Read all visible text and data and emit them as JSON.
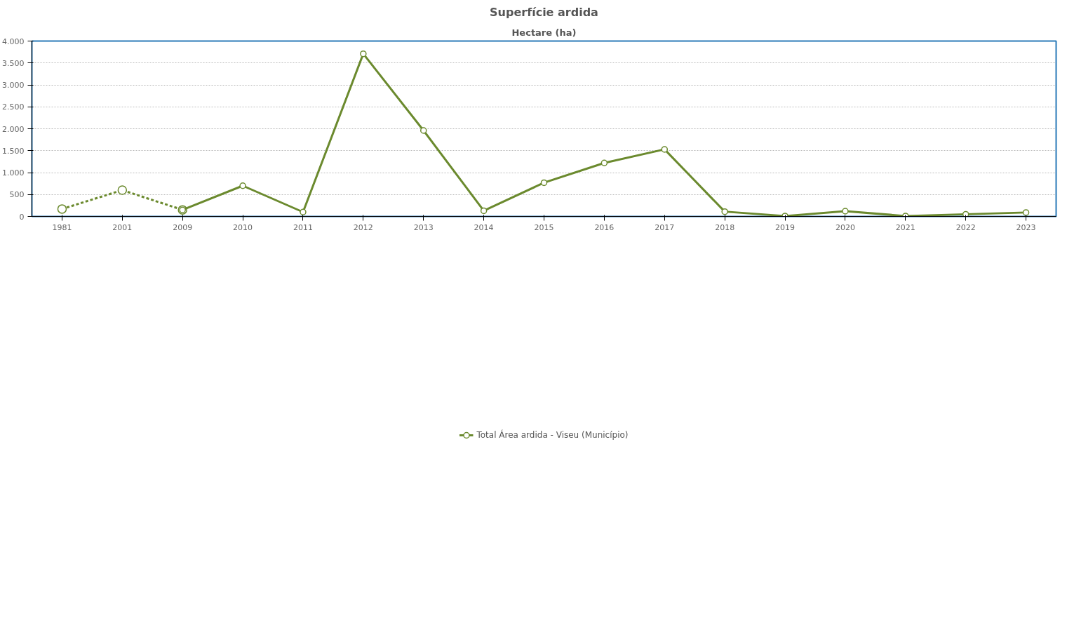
{
  "chart_data": {
    "type": "line",
    "title": "Superfície ardida",
    "subtitle": "Hectare (ha)",
    "categories": [
      "1981",
      "2001",
      "2009",
      "2010",
      "2011",
      "2012",
      "2013",
      "2014",
      "2015",
      "2016",
      "2017",
      "2018",
      "2019",
      "2020",
      "2021",
      "2022",
      "2023"
    ],
    "series": [
      {
        "color": "#6b8a2e",
        "line_style": "dashed",
        "values": [
          170,
          600,
          150,
          null,
          null,
          null,
          null,
          null,
          null,
          null,
          null,
          null,
          null,
          null,
          null,
          null,
          null
        ]
      },
      {
        "name": "Total Área ardida - Viseu (Município)",
        "color": "#6b8a2e",
        "line_style": "solid",
        "values": [
          null,
          null,
          150,
          700,
          100,
          3710,
          1960,
          130,
          770,
          1220,
          1530,
          110,
          10,
          120,
          10,
          50,
          90
        ]
      }
    ],
    "ylim": [
      0,
      4000
    ],
    "yticks": [
      0,
      {
        "value": 500,
        "label": "500"
      },
      {
        "value": 1000,
        "label": "1.000"
      },
      {
        "value": 1500,
        "label": "1.500"
      },
      {
        "value": 2000,
        "label": "2.000"
      },
      {
        "value": 2500,
        "label": "2.500"
      },
      {
        "value": 3000,
        "label": "3.000"
      },
      {
        "value": 3500,
        "label": "3.500"
      },
      {
        "value": 4000,
        "label": "4.000"
      }
    ],
    "grid": "y",
    "marker": "circle",
    "legend": "bottom"
  }
}
